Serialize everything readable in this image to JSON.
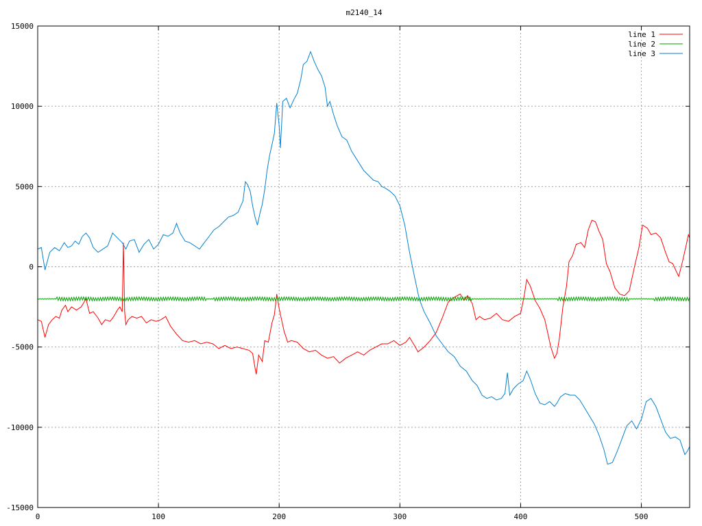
{
  "chart_data": {
    "type": "line",
    "title": "m2140_14",
    "xlabel": "",
    "ylabel": "",
    "xlim": [
      0,
      540
    ],
    "ylim": [
      -15000,
      15000
    ],
    "xticks": [
      0,
      100,
      200,
      300,
      400,
      500
    ],
    "yticks": [
      -15000,
      -10000,
      -5000,
      0,
      5000,
      10000,
      15000
    ],
    "grid": true,
    "legend_position": "top-right",
    "series": [
      {
        "name": "line 1",
        "color": "#ff0000",
        "points": [
          [
            0,
            -3300
          ],
          [
            3,
            -3400
          ],
          [
            6,
            -4400
          ],
          [
            9,
            -3600
          ],
          [
            12,
            -3300
          ],
          [
            15,
            -3100
          ],
          [
            18,
            -3200
          ],
          [
            20,
            -2700
          ],
          [
            23,
            -2400
          ],
          [
            25,
            -2800
          ],
          [
            28,
            -2500
          ],
          [
            32,
            -2700
          ],
          [
            36,
            -2500
          ],
          [
            40,
            -2000
          ],
          [
            43,
            -2900
          ],
          [
            46,
            -2800
          ],
          [
            50,
            -3200
          ],
          [
            53,
            -3600
          ],
          [
            56,
            -3300
          ],
          [
            60,
            -3400
          ],
          [
            63,
            -3100
          ],
          [
            66,
            -2700
          ],
          [
            68,
            -2500
          ],
          [
            70,
            -2800
          ],
          [
            71,
            1500
          ],
          [
            72,
            -2800
          ],
          [
            73,
            -3600
          ],
          [
            75,
            -3300
          ],
          [
            78,
            -3100
          ],
          [
            82,
            -3200
          ],
          [
            86,
            -3100
          ],
          [
            90,
            -3500
          ],
          [
            94,
            -3300
          ],
          [
            98,
            -3400
          ],
          [
            102,
            -3300
          ],
          [
            106,
            -3100
          ],
          [
            110,
            -3700
          ],
          [
            115,
            -4200
          ],
          [
            120,
            -4600
          ],
          [
            125,
            -4700
          ],
          [
            130,
            -4600
          ],
          [
            135,
            -4800
          ],
          [
            140,
            -4700
          ],
          [
            145,
            -4800
          ],
          [
            150,
            -5100
          ],
          [
            155,
            -4900
          ],
          [
            160,
            -5100
          ],
          [
            165,
            -5000
          ],
          [
            170,
            -5100
          ],
          [
            175,
            -5200
          ],
          [
            178,
            -5400
          ],
          [
            180,
            -6300
          ],
          [
            181,
            -6700
          ],
          [
            183,
            -5500
          ],
          [
            186,
            -5900
          ],
          [
            188,
            -4600
          ],
          [
            191,
            -4700
          ],
          [
            194,
            -3500
          ],
          [
            196,
            -3000
          ],
          [
            198,
            -1700
          ],
          [
            200,
            -2600
          ],
          [
            202,
            -3300
          ],
          [
            204,
            -4000
          ],
          [
            207,
            -4700
          ],
          [
            210,
            -4600
          ],
          [
            215,
            -4700
          ],
          [
            220,
            -5100
          ],
          [
            225,
            -5300
          ],
          [
            230,
            -5200
          ],
          [
            235,
            -5500
          ],
          [
            240,
            -5700
          ],
          [
            245,
            -5600
          ],
          [
            250,
            -6000
          ],
          [
            255,
            -5700
          ],
          [
            260,
            -5500
          ],
          [
            265,
            -5300
          ],
          [
            270,
            -5500
          ],
          [
            275,
            -5200
          ],
          [
            280,
            -5000
          ],
          [
            285,
            -4800
          ],
          [
            290,
            -4800
          ],
          [
            295,
            -4600
          ],
          [
            300,
            -4900
          ],
          [
            305,
            -4700
          ],
          [
            308,
            -4400
          ],
          [
            312,
            -4900
          ],
          [
            315,
            -5300
          ],
          [
            320,
            -5000
          ],
          [
            325,
            -4600
          ],
          [
            330,
            -4100
          ],
          [
            335,
            -3200
          ],
          [
            340,
            -2200
          ],
          [
            345,
            -1900
          ],
          [
            350,
            -1700
          ],
          [
            353,
            -2100
          ],
          [
            356,
            -1800
          ],
          [
            360,
            -2300
          ],
          [
            363,
            -3300
          ],
          [
            366,
            -3100
          ],
          [
            370,
            -3300
          ],
          [
            375,
            -3200
          ],
          [
            380,
            -2900
          ],
          [
            385,
            -3300
          ],
          [
            390,
            -3400
          ],
          [
            395,
            -3100
          ],
          [
            400,
            -2900
          ],
          [
            403,
            -1800
          ],
          [
            405,
            -800
          ],
          [
            408,
            -1200
          ],
          [
            412,
            -2100
          ],
          [
            416,
            -2600
          ],
          [
            420,
            -3300
          ],
          [
            425,
            -5000
          ],
          [
            428,
            -5700
          ],
          [
            430,
            -5400
          ],
          [
            432,
            -4500
          ],
          [
            435,
            -2500
          ],
          [
            438,
            -1200
          ],
          [
            440,
            300
          ],
          [
            443,
            700
          ],
          [
            446,
            1400
          ],
          [
            450,
            1500
          ],
          [
            453,
            1200
          ],
          [
            456,
            2300
          ],
          [
            459,
            2900
          ],
          [
            462,
            2800
          ],
          [
            465,
            2200
          ],
          [
            468,
            1700
          ],
          [
            471,
            200
          ],
          [
            474,
            -300
          ],
          [
            478,
            -1300
          ],
          [
            482,
            -1700
          ],
          [
            486,
            -1800
          ],
          [
            490,
            -1500
          ],
          [
            494,
            -100
          ],
          [
            498,
            1200
          ],
          [
            501,
            2600
          ],
          [
            505,
            2400
          ],
          [
            508,
            2000
          ],
          [
            512,
            2100
          ],
          [
            516,
            1800
          ],
          [
            520,
            900
          ],
          [
            523,
            300
          ],
          [
            526,
            200
          ],
          [
            529,
            -300
          ],
          [
            531,
            -600
          ],
          [
            534,
            300
          ],
          [
            537,
            1300
          ],
          [
            539,
            2000
          ],
          [
            540,
            1800
          ]
        ]
      },
      {
        "name": "line 2",
        "color": "#00a000",
        "points": [
          [
            0,
            -2000
          ],
          [
            540,
            -2000
          ]
        ]
      },
      {
        "name": "line 3",
        "color": "#0080d0",
        "points": [
          [
            0,
            1100
          ],
          [
            3,
            1200
          ],
          [
            6,
            -200
          ],
          [
            10,
            900
          ],
          [
            14,
            1200
          ],
          [
            18,
            1000
          ],
          [
            22,
            1500
          ],
          [
            25,
            1200
          ],
          [
            28,
            1300
          ],
          [
            31,
            1600
          ],
          [
            34,
            1400
          ],
          [
            37,
            1900
          ],
          [
            40,
            2100
          ],
          [
            43,
            1800
          ],
          [
            46,
            1200
          ],
          [
            50,
            900
          ],
          [
            54,
            1100
          ],
          [
            58,
            1300
          ],
          [
            62,
            2100
          ],
          [
            66,
            1800
          ],
          [
            70,
            1500
          ],
          [
            73,
            1100
          ],
          [
            76,
            1600
          ],
          [
            80,
            1700
          ],
          [
            84,
            900
          ],
          [
            88,
            1400
          ],
          [
            92,
            1700
          ],
          [
            96,
            1100
          ],
          [
            100,
            1400
          ],
          [
            104,
            2000
          ],
          [
            108,
            1900
          ],
          [
            112,
            2100
          ],
          [
            115,
            2700
          ],
          [
            118,
            2100
          ],
          [
            122,
            1600
          ],
          [
            126,
            1500
          ],
          [
            130,
            1300
          ],
          [
            134,
            1100
          ],
          [
            138,
            1500
          ],
          [
            142,
            1900
          ],
          [
            146,
            2300
          ],
          [
            150,
            2500
          ],
          [
            154,
            2800
          ],
          [
            158,
            3100
          ],
          [
            162,
            3200
          ],
          [
            166,
            3400
          ],
          [
            170,
            4100
          ],
          [
            172,
            5300
          ],
          [
            174,
            5100
          ],
          [
            176,
            4700
          ],
          [
            178,
            3800
          ],
          [
            180,
            3100
          ],
          [
            182,
            2600
          ],
          [
            184,
            3300
          ],
          [
            186,
            3900
          ],
          [
            188,
            4800
          ],
          [
            190,
            6000
          ],
          [
            192,
            6900
          ],
          [
            194,
            7600
          ],
          [
            196,
            8300
          ],
          [
            198,
            10200
          ],
          [
            200,
            8800
          ],
          [
            201,
            7400
          ],
          [
            203,
            10300
          ],
          [
            206,
            10500
          ],
          [
            209,
            9900
          ],
          [
            212,
            10400
          ],
          [
            215,
            10800
          ],
          [
            218,
            11700
          ],
          [
            220,
            12600
          ],
          [
            223,
            12800
          ],
          [
            226,
            13400
          ],
          [
            229,
            12800
          ],
          [
            232,
            12300
          ],
          [
            235,
            11900
          ],
          [
            238,
            11200
          ],
          [
            240,
            10000
          ],
          [
            242,
            10300
          ],
          [
            245,
            9500
          ],
          [
            248,
            8800
          ],
          [
            252,
            8100
          ],
          [
            256,
            7900
          ],
          [
            260,
            7200
          ],
          [
            265,
            6600
          ],
          [
            270,
            6000
          ],
          [
            274,
            5700
          ],
          [
            278,
            5400
          ],
          [
            282,
            5300
          ],
          [
            285,
            5000
          ],
          [
            288,
            4900
          ],
          [
            292,
            4700
          ],
          [
            296,
            4400
          ],
          [
            300,
            3800
          ],
          [
            304,
            2600
          ],
          [
            308,
            900
          ],
          [
            312,
            -600
          ],
          [
            316,
            -2000
          ],
          [
            320,
            -2800
          ],
          [
            325,
            -3500
          ],
          [
            330,
            -4300
          ],
          [
            335,
            -4800
          ],
          [
            340,
            -5300
          ],
          [
            345,
            -5600
          ],
          [
            350,
            -6200
          ],
          [
            355,
            -6500
          ],
          [
            360,
            -7100
          ],
          [
            364,
            -7400
          ],
          [
            368,
            -8000
          ],
          [
            372,
            -8200
          ],
          [
            376,
            -8100
          ],
          [
            380,
            -8300
          ],
          [
            384,
            -8200
          ],
          [
            387,
            -7900
          ],
          [
            389,
            -6600
          ],
          [
            391,
            -8000
          ],
          [
            394,
            -7600
          ],
          [
            398,
            -7300
          ],
          [
            402,
            -7100
          ],
          [
            405,
            -6500
          ],
          [
            408,
            -7000
          ],
          [
            412,
            -7900
          ],
          [
            416,
            -8500
          ],
          [
            420,
            -8600
          ],
          [
            424,
            -8400
          ],
          [
            428,
            -8700
          ],
          [
            430,
            -8500
          ],
          [
            433,
            -8100
          ],
          [
            437,
            -7900
          ],
          [
            441,
            -8000
          ],
          [
            445,
            -8000
          ],
          [
            449,
            -8300
          ],
          [
            453,
            -8800
          ],
          [
            457,
            -9300
          ],
          [
            461,
            -9800
          ],
          [
            465,
            -10500
          ],
          [
            469,
            -11400
          ],
          [
            472,
            -12300
          ],
          [
            476,
            -12200
          ],
          [
            480,
            -11500
          ],
          [
            484,
            -10700
          ],
          [
            488,
            -9900
          ],
          [
            492,
            -9600
          ],
          [
            496,
            -10100
          ],
          [
            500,
            -9500
          ],
          [
            504,
            -8400
          ],
          [
            508,
            -8200
          ],
          [
            512,
            -8700
          ],
          [
            516,
            -9500
          ],
          [
            520,
            -10300
          ],
          [
            524,
            -10700
          ],
          [
            528,
            -10600
          ],
          [
            532,
            -10800
          ],
          [
            536,
            -11700
          ],
          [
            538,
            -11500
          ],
          [
            540,
            -11200
          ]
        ]
      }
    ]
  }
}
